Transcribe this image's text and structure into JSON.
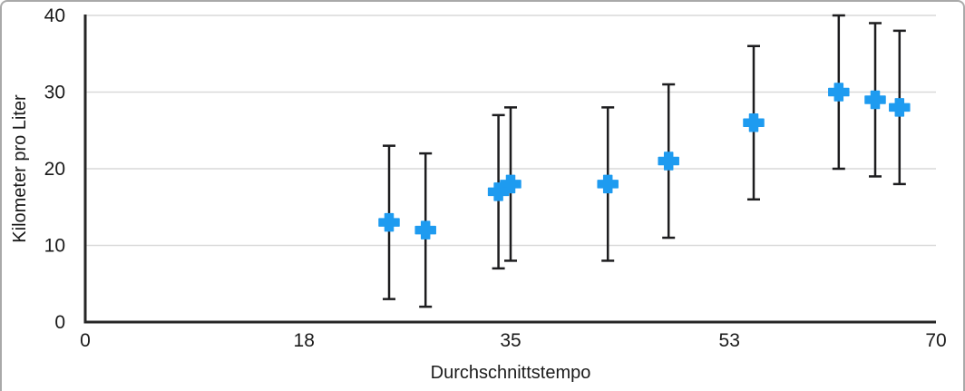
{
  "figure": {
    "background": "#ffffff",
    "border_color": "#a9a9a9"
  },
  "colors": {
    "marker": "#1e9bf0",
    "error_bar": "#1d1d1f",
    "axis": "#262626",
    "gridline": "#d9d9d9",
    "text": "#1a1a1a"
  },
  "chart_data": {
    "type": "scatter",
    "title": "",
    "xlabel": "Durchschnittstempo",
    "ylabel": "Kilometer pro Liter",
    "xlim": [
      0,
      70
    ],
    "ylim": [
      0,
      40
    ],
    "x_ticks": [
      0,
      18,
      35,
      53,
      70
    ],
    "y_ticks": [
      0,
      10,
      20,
      30,
      40
    ],
    "grid": "horizontal",
    "legend": "none",
    "marker_style": "plus",
    "error_bars": "vertical, symmetric, with caps",
    "series": [
      {
        "name": "Kilometer pro Liter",
        "points": [
          {
            "x": 25,
            "y": 13,
            "error": 10
          },
          {
            "x": 28,
            "y": 12,
            "error": 10
          },
          {
            "x": 34,
            "y": 17,
            "error": 10
          },
          {
            "x": 35,
            "y": 18,
            "error": 10
          },
          {
            "x": 43,
            "y": 18,
            "error": 10
          },
          {
            "x": 48,
            "y": 21,
            "error": 10
          },
          {
            "x": 55,
            "y": 26,
            "error": 10
          },
          {
            "x": 62,
            "y": 30,
            "error": 10
          },
          {
            "x": 65,
            "y": 29,
            "error": 10
          },
          {
            "x": 67,
            "y": 28,
            "error": 10
          }
        ]
      }
    ]
  }
}
